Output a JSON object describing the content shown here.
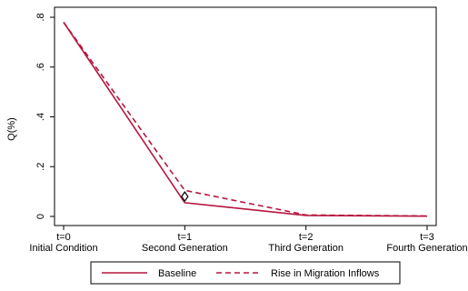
{
  "chart_data": {
    "type": "line",
    "ylabel": "Q(%)",
    "ylim": [
      0,
      0.8
    ],
    "yticks": [
      {
        "value": 0,
        "label": "0"
      },
      {
        "value": 0.2,
        "label": ".2"
      },
      {
        "value": 0.4,
        "label": ".4"
      },
      {
        "value": 0.6,
        "label": ".6"
      },
      {
        "value": 0.8,
        "label": ".8"
      }
    ],
    "x": [
      0,
      1,
      2,
      3
    ],
    "xticks": [
      {
        "line1": "t=0",
        "line2": "Initial Condition"
      },
      {
        "line1": "t=1",
        "line2": "Second Generation"
      },
      {
        "line1": "t=2",
        "line2": "Third Generation"
      },
      {
        "line1": "t=3",
        "line2": "Fourth Generation"
      }
    ],
    "series": [
      {
        "name": "Baseline",
        "values": [
          0.78,
          0.055,
          0.004,
          0.001
        ],
        "color": "#b5153d",
        "dash": "solid"
      },
      {
        "name": "Rise in Migration Inflows",
        "values": [
          0.78,
          0.105,
          0.006,
          0.002
        ],
        "color": "#b5153d",
        "dash": "dashed"
      }
    ],
    "annotation": {
      "marker": "diamond",
      "x": 1,
      "y": 0.08
    },
    "legend": {
      "position": "bottom"
    },
    "grid": false
  }
}
